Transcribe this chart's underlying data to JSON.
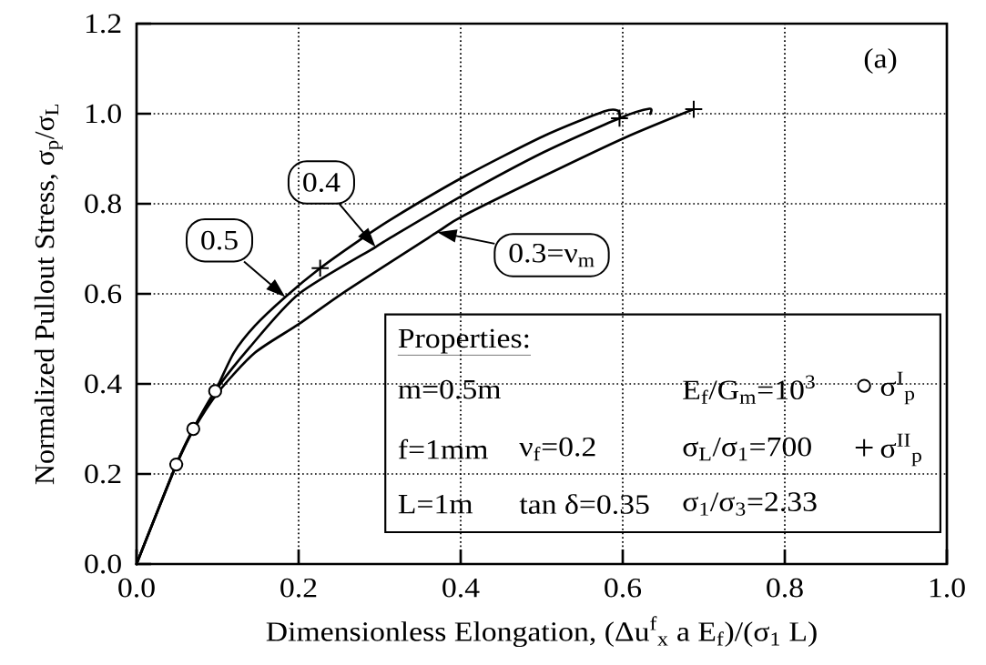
{
  "chart_data": {
    "type": "line",
    "xlabel": "Dimensionless Elongation, (Δu$^{f}$$_{x}$ a E$_{f}$)/(σ$_{1}$ L)",
    "ylabel": "Normalized Pullout Stress, σ$_{p}$/σ$_{L}$",
    "xlim": [
      0,
      1
    ],
    "ylim": [
      0,
      1.2
    ],
    "xticks": [
      {
        "value": 0,
        "label": "0.0"
      },
      0.2,
      0.4,
      0.6,
      0.8,
      {
        "value": 1,
        "label": "1.0"
      }
    ],
    "yticks": [
      {
        "value": 0,
        "label": "0.0"
      },
      0.2,
      0.4,
      0.6,
      0.8,
      {
        "value": 1,
        "label": "1.0"
      },
      1.2
    ],
    "grid": true,
    "legend": "bottom right",
    "line_style": "solid",
    "series": [
      {
        "color": "#000000",
        "x": [
          0,
          0.049,
          0.07,
          0.097,
          0.12,
          0.146,
          0.1835,
          0.2266,
          0.2734,
          0.3146,
          0.4019,
          0.502,
          0.5768,
          0.5936,
          0.597
        ],
        "values": [
          0,
          0.221,
          0.3,
          0.384,
          0.469,
          0.529,
          0.593,
          0.657,
          0.717,
          0.766,
          0.858,
          0.95,
          1.005,
          1.007,
          0.99
        ]
      },
      {
        "color": "#000000",
        "x": [
          0,
          0.049,
          0.07,
          0.097,
          0.14,
          0.2004,
          0.295,
          0.3146,
          0.4019,
          0.502,
          0.596,
          0.633,
          0.634
        ],
        "values": [
          0,
          0.221,
          0.3,
          0.384,
          0.482,
          0.6,
          0.704,
          0.726,
          0.818,
          0.914,
          0.99,
          1.011,
          1.0
        ]
      },
      {
        "color": "#000000",
        "x": [
          0,
          0.049,
          0.07,
          0.101,
          0.146,
          0.2004,
          0.258,
          0.371,
          0.4019,
          0.502,
          0.603,
          0.6876
        ],
        "values": [
          0,
          0.219,
          0.297,
          0.382,
          0.469,
          0.533,
          0.606,
          0.737,
          0.772,
          0.861,
          0.947,
          1.01
        ]
      },
      {
        "type": "scatter",
        "name": "σ$^{I}$$_{p}$",
        "marker": "circle",
        "color": "#000000",
        "x": [
          0.049,
          0.07,
          0.097
        ],
        "values": [
          0.221,
          0.3,
          0.384
        ]
      },
      {
        "type": "scatter",
        "name": "σ$^{II}$$_{p}$",
        "marker": "cross",
        "color": "#000000",
        "x": [
          0.2266,
          0.596,
          0.6876
        ],
        "values": [
          0.657,
          0.99,
          1.01
        ]
      }
    ],
    "annotations": [
      "(a)",
      {
        "text": "0.5",
        "x": 0.1835,
        "y": 0.593
      },
      {
        "text": "0.4",
        "x": 0.295,
        "y": 0.704
      },
      {
        "text": "0.3=ν$_{m}$",
        "x": 0.371,
        "y": 0.737
      },
      "Properties:",
      "m=0.5m",
      "E$_{f}$/G$_{m}$=10$^{3}$",
      "f=1mm",
      "ν$_{f}$=0.2",
      "σ$_{L}$/σ$_{1}$=700",
      "L=1m",
      "tan δ=0.35",
      "σ$_{1}$/σ$_{3}$=2.33"
    ]
  }
}
